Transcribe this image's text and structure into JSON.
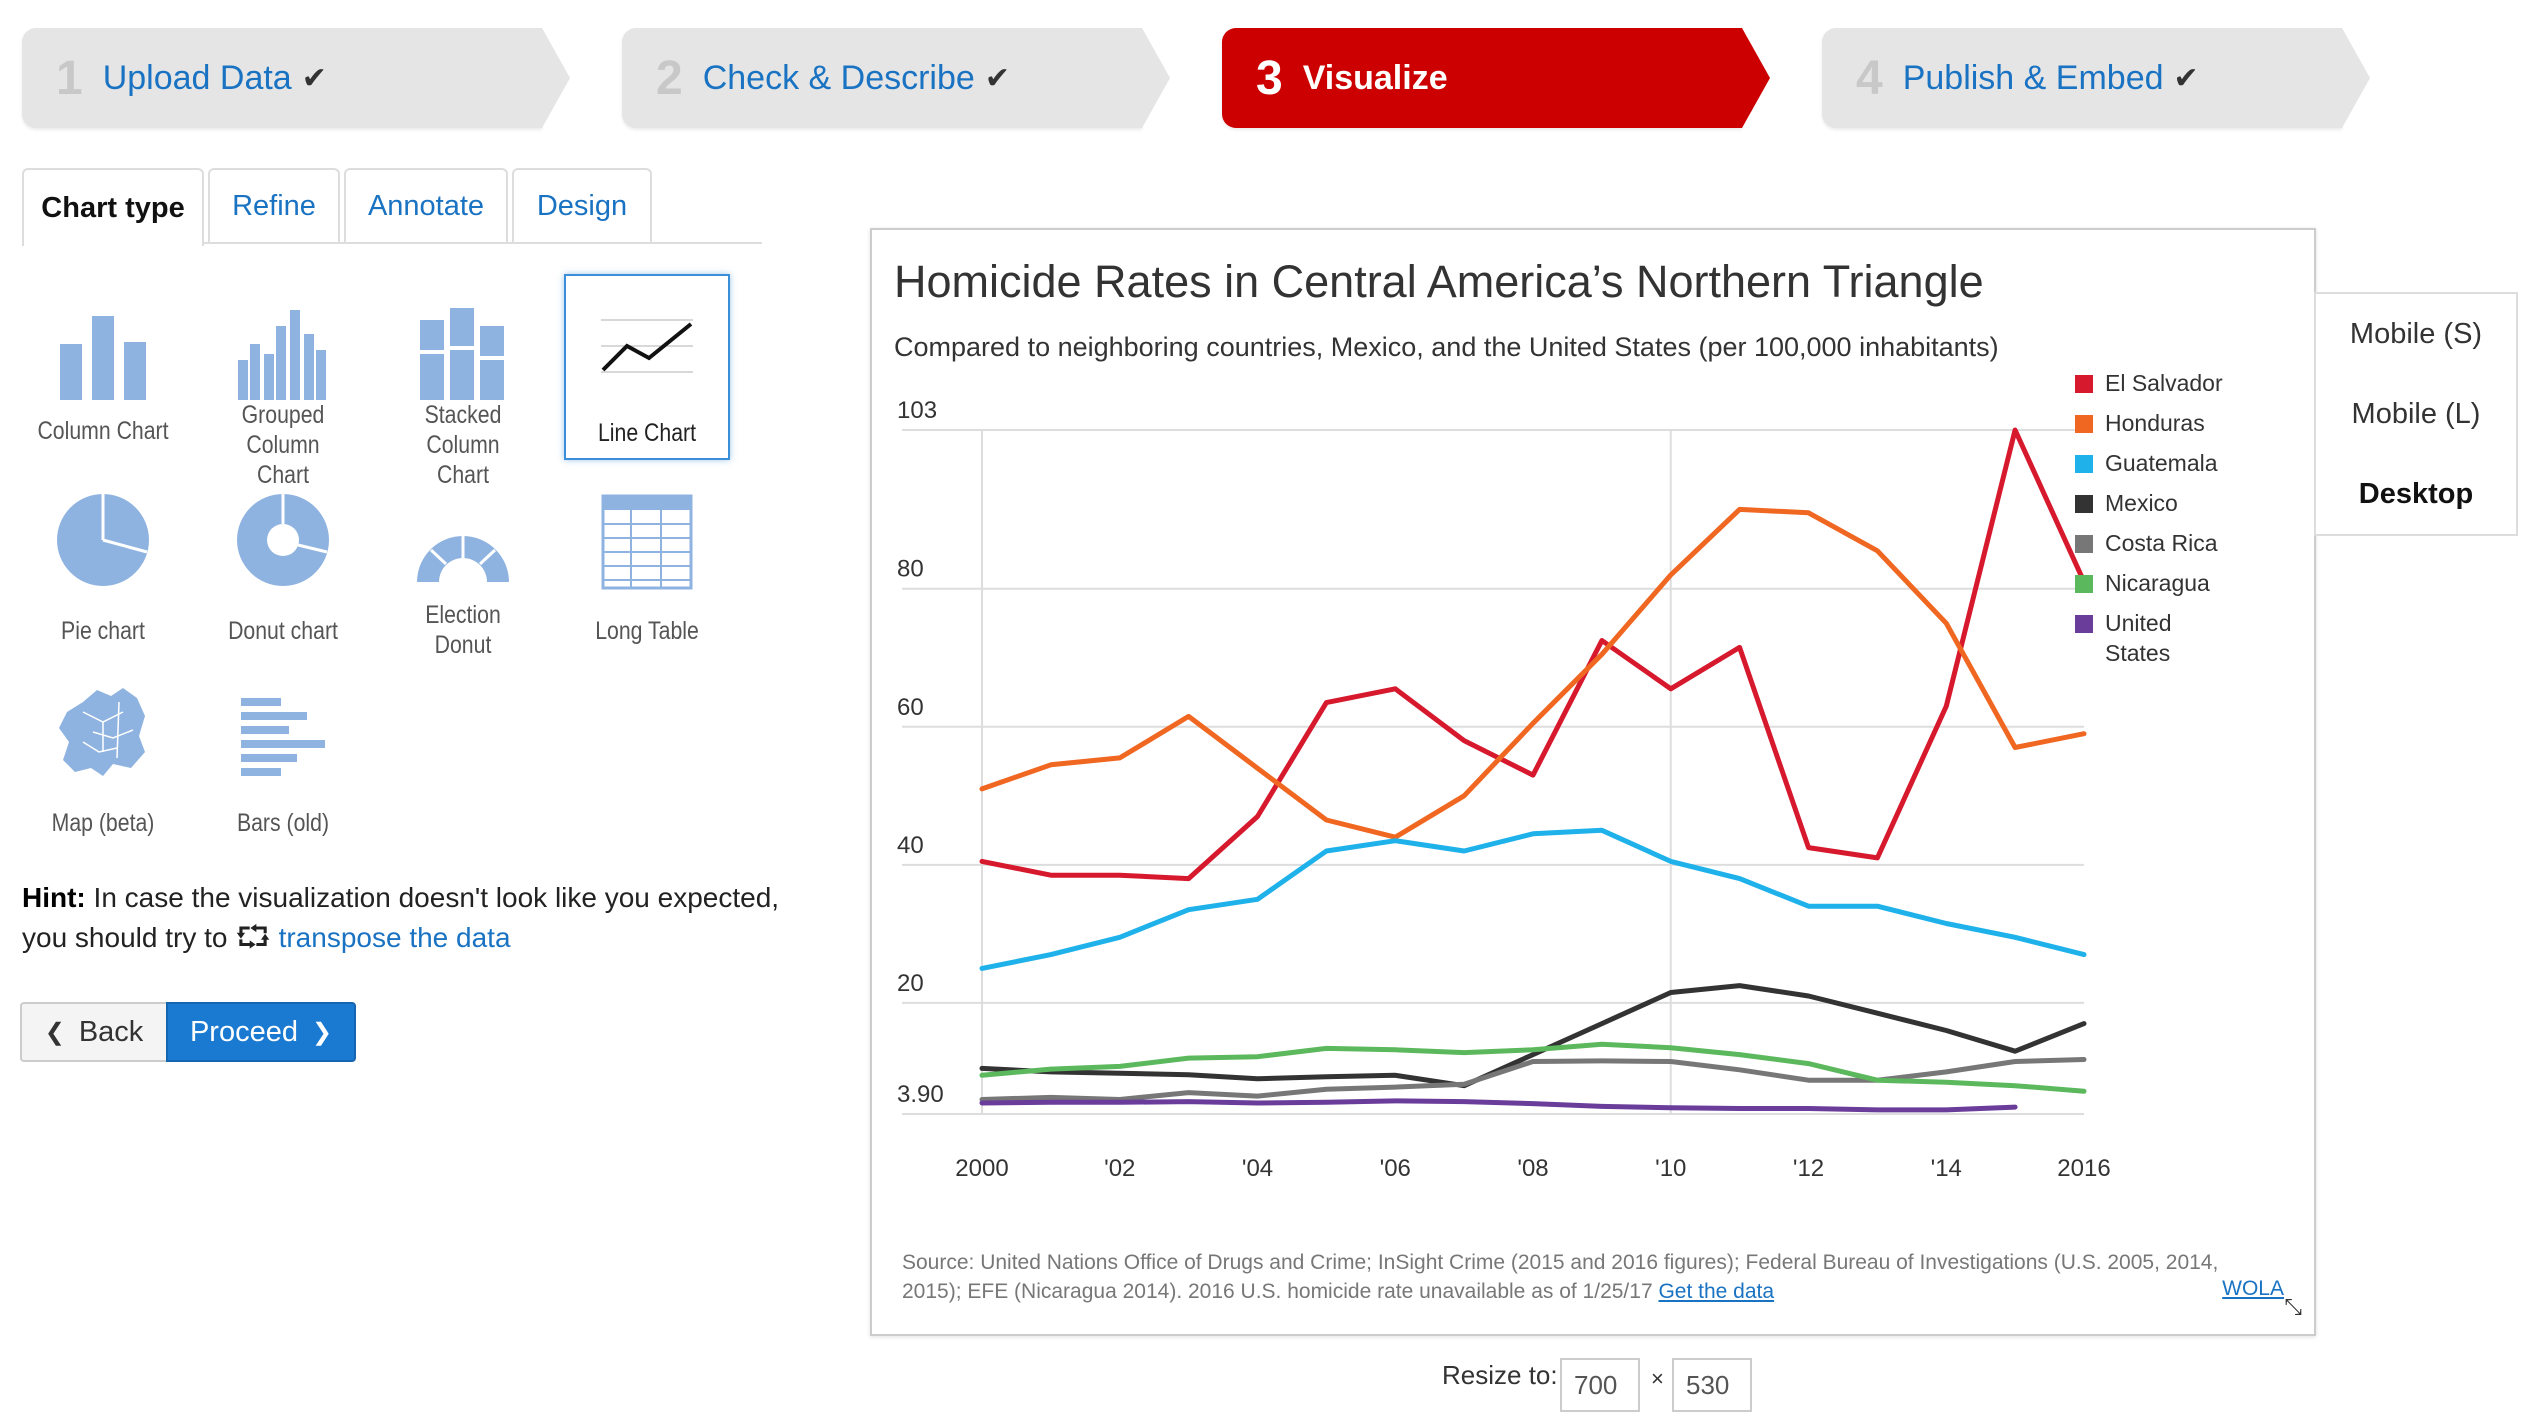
{
  "steps": [
    {
      "num": "1",
      "label": "Upload Data",
      "check": "✔"
    },
    {
      "num": "2",
      "label": "Check & Describe",
      "check": "✔"
    },
    {
      "num": "3",
      "label": "Visualize",
      "check": ""
    },
    {
      "num": "4",
      "label": "Publish & Embed",
      "check": "✔"
    }
  ],
  "tabs": [
    "Chart type",
    "Refine",
    "Annotate",
    "Design"
  ],
  "chart_types": [
    {
      "label": "Column Chart",
      "icon": "column-chart-icon"
    },
    {
      "label": "Grouped Column Chart",
      "icon": "grouped-column-chart-icon"
    },
    {
      "label": "Stacked Column Chart",
      "icon": "stacked-column-chart-icon"
    },
    {
      "label": "Line Chart",
      "icon": "line-chart-icon",
      "selected": true
    },
    {
      "label": "Pie chart",
      "icon": "pie-chart-icon"
    },
    {
      "label": "Donut chart",
      "icon": "donut-chart-icon"
    },
    {
      "label": "Election Donut",
      "icon": "election-donut-icon"
    },
    {
      "label": "Long Table",
      "icon": "table-icon"
    },
    {
      "label": "Map (beta)",
      "icon": "map-icon"
    },
    {
      "label": "Bars (old)",
      "icon": "bars-icon"
    }
  ],
  "hint": {
    "bold": "Hint:",
    "text": "In case the visualization doesn't look like you expected, you should try to",
    "link": "transpose the data"
  },
  "buttons": {
    "back": "Back",
    "proceed": "Proceed"
  },
  "devices": [
    "Mobile (S)",
    "Mobile (L)",
    "Desktop"
  ],
  "resize": {
    "label": "Resize to:",
    "width": "700",
    "sep": "×",
    "height": "530"
  },
  "chart": {
    "title": "Homicide Rates in Central America’s Northern Triangle",
    "subtitle": "Compared to neighboring countries, Mexico, and the United States (per 100,000 inhabitants)",
    "source": "Source: United Nations Office of Drugs and Crime; InSight Crime (2015 and 2016 figures); Federal Bureau of Investigations (U.S. 2005, 2014, 2015); EFE (Nicaragua 2014). 2016 U.S. homicide rate unavailable as of 1/25/17",
    "source_link": "Get the data",
    "byline": "WOLA"
  },
  "chart_data": {
    "type": "line",
    "x": [
      2000,
      2001,
      2002,
      2003,
      2004,
      2005,
      2006,
      2007,
      2008,
      2009,
      2010,
      2011,
      2012,
      2013,
      2014,
      2015,
      2016
    ],
    "xticks": [
      "2000",
      "'02",
      "'04",
      "'06",
      "'08",
      "'10",
      "'12",
      "'14",
      "2016"
    ],
    "yticks": [
      3.9,
      20,
      40,
      60,
      80,
      103
    ],
    "ytick_labels": [
      "3.90",
      "20",
      "40",
      "60",
      "80",
      "103"
    ],
    "ylim": [
      3.9,
      103
    ],
    "series": [
      {
        "name": "El Salvador",
        "color": "#d7192e",
        "values": [
          40.5,
          38.5,
          38.5,
          38,
          47,
          63.5,
          65.5,
          58,
          53,
          72.5,
          65.5,
          71.5,
          42.5,
          41,
          63,
          103,
          81
        ]
      },
      {
        "name": "Honduras",
        "color": "#f06722",
        "values": [
          51,
          54.5,
          55.5,
          61.5,
          54,
          46.5,
          44,
          50,
          60.5,
          70.5,
          82,
          91.5,
          91,
          85.5,
          75,
          57,
          59
        ]
      },
      {
        "name": "Guatemala",
        "color": "#1fb1ea",
        "values": [
          25,
          27,
          29.5,
          33.5,
          35,
          42,
          43.5,
          42,
          44.5,
          45,
          40.5,
          38,
          34,
          34,
          31.5,
          29.5,
          27
        ]
      },
      {
        "name": "Mexico",
        "color": "#333333",
        "values": [
          10.5,
          10,
          9.8,
          9.6,
          9,
          9.3,
          9.5,
          8,
          12.5,
          17,
          21.5,
          22.5,
          21,
          18.5,
          16,
          13,
          17
        ]
      },
      {
        "name": "Costa Rica",
        "color": "#777777",
        "values": [
          6,
          6.3,
          6,
          7,
          6.5,
          7.5,
          7.8,
          8.2,
          11.5,
          11.6,
          11.5,
          10.3,
          8.8,
          8.8,
          10,
          11.5,
          11.8
        ]
      },
      {
        "name": "Nicaragua",
        "color": "#5cb85c",
        "values": [
          9.5,
          10.4,
          10.8,
          12,
          12.2,
          13.4,
          13.2,
          12.8,
          13.2,
          14,
          13.5,
          12.5,
          11.2,
          8.8,
          8.5,
          8,
          7.2
        ]
      },
      {
        "name": "United States",
        "color": "#6a3d9a",
        "values": [
          5.5,
          5.6,
          5.6,
          5.7,
          5.5,
          5.6,
          5.8,
          5.7,
          5.4,
          5,
          4.8,
          4.7,
          4.7,
          4.5,
          4.5,
          4.9,
          null
        ]
      }
    ],
    "legend": [
      "El Salvador",
      "Honduras",
      "Guatemala",
      "Mexico",
      "Costa Rica",
      "Nicaragua",
      "United States"
    ],
    "legend_position": "top-right",
    "grid": true
  }
}
